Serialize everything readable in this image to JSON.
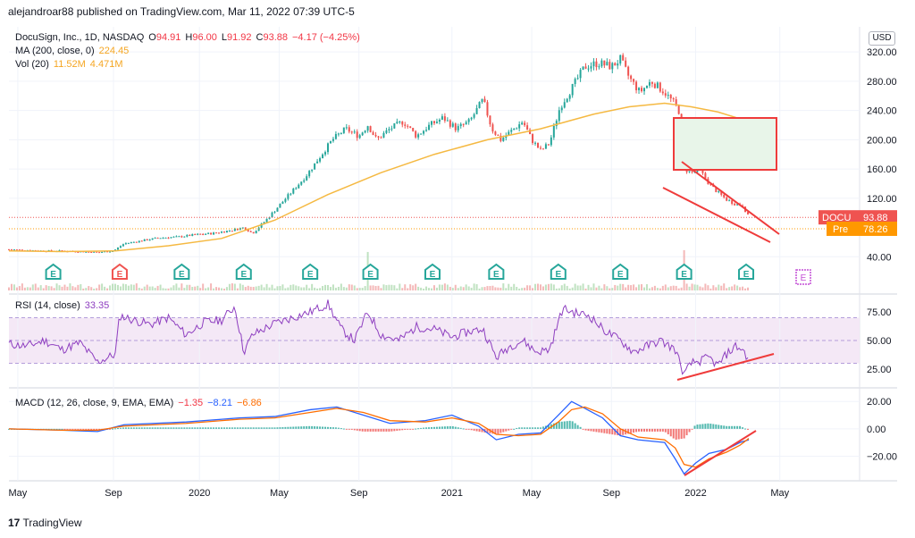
{
  "header": {
    "text": "alejandroar88 published on TradingView.com, Mar 11, 2022 07:39 UTC-5"
  },
  "legend": {
    "symbol": "DocuSign, Inc., 1D, NASDAQ",
    "o_label": "O",
    "o": "94.91",
    "h_label": "H",
    "h": "96.00",
    "l_label": "L",
    "l": "91.92",
    "c_label": "C",
    "c": "93.88",
    "change": "−4.17 (−4.25%)",
    "ma_label": "MA (200, close, 0)",
    "ma": "224.45",
    "vol_label": "Vol (20)",
    "vol": "11.52M",
    "vol2": "4.471M"
  },
  "rsi_legend": {
    "label": "RSI (14, close)",
    "value": "33.35"
  },
  "macd_legend": {
    "label": "MACD (12, 26, close, 9, EMA, EMA)",
    "v1": "−1.35",
    "v2": "−8.21",
    "v3": "−6.86"
  },
  "currency": "USD",
  "price_tag": {
    "symbol": "DOCU",
    "price": "93.88",
    "pre_label": "Pre",
    "pre_price": "78.26"
  },
  "footer": "TradingView",
  "earnings_marker": "E",
  "colors": {
    "up": "#26a69a",
    "down": "#ef5350",
    "ma": "#f5b942",
    "rsi": "#8e3fc0",
    "macd": "#2962ff",
    "signal": "#ff6d00",
    "annot": "#ef3b3b"
  },
  "chart_data": [
    {
      "type": "candlestick",
      "title": "DocuSign, Inc., 1D, NASDAQ",
      "y_ticks": [
        "320.00",
        "280.00",
        "240.00",
        "200.00",
        "160.00",
        "120.00",
        "40.00"
      ],
      "ylim": [
        0,
        330
      ],
      "x_ticks": [
        "May",
        "Sep",
        "2020",
        "May",
        "Sep",
        "2021",
        "May",
        "Sep",
        "2022",
        "May"
      ],
      "close_series": [
        [
          0,
          50
        ],
        [
          20,
          49
        ],
        [
          40,
          48
        ],
        [
          60,
          48
        ],
        [
          80,
          47
        ],
        [
          100,
          46
        ],
        [
          118,
          48
        ],
        [
          130,
          58
        ],
        [
          150,
          62
        ],
        [
          170,
          66
        ],
        [
          190,
          67
        ],
        [
          210,
          70
        ],
        [
          230,
          72
        ],
        [
          250,
          76
        ],
        [
          265,
          80
        ],
        [
          275,
          72
        ],
        [
          290,
          90
        ],
        [
          305,
          110
        ],
        [
          320,
          130
        ],
        [
          335,
          150
        ],
        [
          350,
          175
        ],
        [
          365,
          200
        ],
        [
          380,
          215
        ],
        [
          395,
          205
        ],
        [
          405,
          220
        ],
        [
          415,
          200
        ],
        [
          430,
          215
        ],
        [
          445,
          225
        ],
        [
          460,
          205
        ],
        [
          475,
          220
        ],
        [
          490,
          230
        ],
        [
          505,
          215
        ],
        [
          520,
          225
        ],
        [
          535,
          255
        ],
        [
          545,
          215
        ],
        [
          555,
          200
        ],
        [
          565,
          210
        ],
        [
          580,
          225
        ],
        [
          590,
          200
        ],
        [
          600,
          185
        ],
        [
          610,
          195
        ],
        [
          622,
          245
        ],
        [
          635,
          270
        ],
        [
          650,
          300
        ],
        [
          665,
          305
        ],
        [
          680,
          300
        ],
        [
          690,
          310
        ],
        [
          700,
          285
        ],
        [
          712,
          265
        ],
        [
          725,
          280
        ],
        [
          740,
          265
        ],
        [
          752,
          248
        ],
        [
          758,
          235
        ],
        [
          762,
          160
        ],
        [
          770,
          155
        ],
        [
          780,
          158
        ],
        [
          790,
          140
        ],
        [
          800,
          128
        ],
        [
          810,
          118
        ],
        [
          820,
          112
        ],
        [
          828,
          110
        ],
        [
          835,
          94
        ]
      ],
      "ma200": [
        [
          0,
          48
        ],
        [
          60,
          47
        ],
        [
          120,
          48
        ],
        [
          180,
          55
        ],
        [
          240,
          65
        ],
        [
          300,
          90
        ],
        [
          360,
          125
        ],
        [
          420,
          155
        ],
        [
          480,
          180
        ],
        [
          540,
          200
        ],
        [
          600,
          215
        ],
        [
          660,
          235
        ],
        [
          700,
          245
        ],
        [
          740,
          250
        ],
        [
          770,
          245
        ],
        [
          800,
          238
        ],
        [
          835,
          225
        ]
      ],
      "last": "93.88",
      "pre": "78.26",
      "ma_last": "224.45",
      "volume_label": "Vol (20)",
      "volume": "11.52M",
      "volume_ma": "4.471M"
    },
    {
      "type": "line",
      "title": "RSI (14, close)",
      "ylim": [
        10,
        90
      ],
      "y_ticks": [
        "75.00",
        "50.00",
        "25.00"
      ],
      "band": [
        30,
        70
      ],
      "values": [
        [
          0,
          47
        ],
        [
          20,
          45
        ],
        [
          40,
          50
        ],
        [
          60,
          42
        ],
        [
          80,
          48
        ],
        [
          100,
          31
        ],
        [
          120,
          38
        ],
        [
          125,
          72
        ],
        [
          140,
          68
        ],
        [
          160,
          64
        ],
        [
          180,
          70
        ],
        [
          200,
          55
        ],
        [
          220,
          66
        ],
        [
          240,
          68
        ],
        [
          255,
          80
        ],
        [
          265,
          40
        ],
        [
          275,
          55
        ],
        [
          300,
          65
        ],
        [
          320,
          70
        ],
        [
          340,
          75
        ],
        [
          360,
          82
        ],
        [
          375,
          60
        ],
        [
          390,
          50
        ],
        [
          405,
          75
        ],
        [
          420,
          55
        ],
        [
          440,
          50
        ],
        [
          460,
          62
        ],
        [
          480,
          60
        ],
        [
          500,
          53
        ],
        [
          520,
          58
        ],
        [
          535,
          60
        ],
        [
          550,
          35
        ],
        [
          565,
          45
        ],
        [
          580,
          50
        ],
        [
          595,
          40
        ],
        [
          610,
          42
        ],
        [
          625,
          78
        ],
        [
          640,
          74
        ],
        [
          655,
          72
        ],
        [
          670,
          60
        ],
        [
          690,
          50
        ],
        [
          705,
          40
        ],
        [
          720,
          45
        ],
        [
          735,
          50
        ],
        [
          752,
          42
        ],
        [
          762,
          20
        ],
        [
          770,
          30
        ],
        [
          780,
          32
        ],
        [
          790,
          35
        ],
        [
          800,
          28
        ],
        [
          810,
          38
        ],
        [
          820,
          45
        ],
        [
          828,
          42
        ],
        [
          835,
          33
        ]
      ],
      "last": "33.35"
    },
    {
      "type": "line",
      "title": "MACD (12, 26, close, 9, EMA, EMA)",
      "ylim": [
        -38,
        28
      ],
      "y_ticks": [
        "20.00",
        "0.00",
        "−20.00"
      ],
      "series": [
        {
          "name": "MACD",
          "values": [
            [
              0,
              0
            ],
            [
              60,
              -1
            ],
            [
              100,
              -2
            ],
            [
              130,
              3
            ],
            [
              200,
              5
            ],
            [
              260,
              8
            ],
            [
              300,
              9
            ],
            [
              340,
              14
            ],
            [
              370,
              16
            ],
            [
              400,
              10
            ],
            [
              430,
              4
            ],
            [
              470,
              6
            ],
            [
              500,
              10
            ],
            [
              530,
              2
            ],
            [
              550,
              -8
            ],
            [
              575,
              -4
            ],
            [
              600,
              -3
            ],
            [
              620,
              10
            ],
            [
              635,
              20
            ],
            [
              650,
              15
            ],
            [
              670,
              8
            ],
            [
              690,
              -5
            ],
            [
              710,
              -8
            ],
            [
              740,
              -10
            ],
            [
              752,
              -22
            ],
            [
              762,
              -33
            ],
            [
              775,
              -25
            ],
            [
              790,
              -18
            ],
            [
              810,
              -15
            ],
            [
              825,
              -10
            ],
            [
              835,
              -8
            ]
          ]
        },
        {
          "name": "Signal",
          "values": [
            [
              0,
              0
            ],
            [
              60,
              -1
            ],
            [
              100,
              -1
            ],
            [
              130,
              2
            ],
            [
              200,
              4
            ],
            [
              260,
              7
            ],
            [
              300,
              8
            ],
            [
              340,
              12
            ],
            [
              370,
              15
            ],
            [
              400,
              12
            ],
            [
              430,
              6
            ],
            [
              470,
              5
            ],
            [
              500,
              8
            ],
            [
              530,
              4
            ],
            [
              550,
              -4
            ],
            [
              575,
              -5
            ],
            [
              600,
              -4
            ],
            [
              620,
              5
            ],
            [
              635,
              14
            ],
            [
              650,
              16
            ],
            [
              670,
              11
            ],
            [
              690,
              0
            ],
            [
              710,
              -6
            ],
            [
              740,
              -8
            ],
            [
              752,
              -14
            ],
            [
              762,
              -26
            ],
            [
              775,
              -28
            ],
            [
              790,
              -22
            ],
            [
              810,
              -17
            ],
            [
              825,
              -12
            ],
            [
              835,
              -7
            ]
          ]
        }
      ],
      "values": [
        "−1.35",
        "−8.21",
        "−6.86"
      ]
    }
  ]
}
